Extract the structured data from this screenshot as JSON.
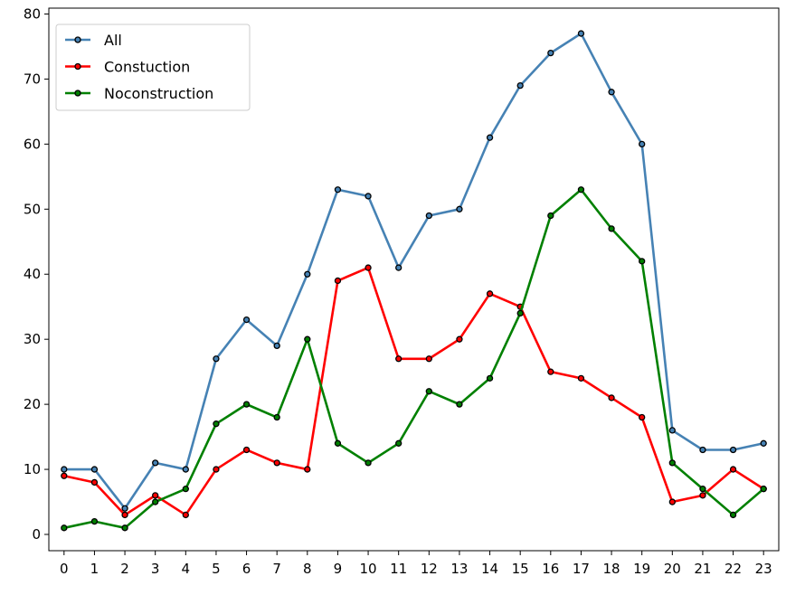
{
  "chart_data": {
    "type": "line",
    "title": "",
    "xlabel": "",
    "ylabel": "",
    "x": [
      0,
      1,
      2,
      3,
      4,
      5,
      6,
      7,
      8,
      9,
      10,
      11,
      12,
      13,
      14,
      15,
      16,
      17,
      18,
      19,
      20,
      21,
      22,
      23
    ],
    "xlim": [
      -0.5,
      23.5
    ],
    "ylim": [
      -2.5,
      80.9
    ],
    "yticks": [
      0,
      10,
      20,
      30,
      40,
      50,
      60,
      70,
      80
    ],
    "grid": false,
    "legend": "top-left",
    "series": [
      {
        "name": "All",
        "color": "#4682B4",
        "values": [
          10,
          10,
          4,
          11,
          10,
          27,
          33,
          29,
          40,
          53,
          52,
          41,
          49,
          50,
          61,
          69,
          74,
          77,
          68,
          60,
          16,
          13,
          13,
          14
        ]
      },
      {
        "name": "Constuction",
        "color": "#FF0000",
        "values": [
          9,
          8,
          3,
          6,
          3,
          10,
          13,
          11,
          10,
          39,
          41,
          27,
          27,
          30,
          37,
          35,
          25,
          24,
          21,
          18,
          5,
          6,
          10,
          7
        ]
      },
      {
        "name": "Noconstruction",
        "color": "#008000",
        "values": [
          1,
          2,
          1,
          5,
          7,
          17,
          20,
          18,
          30,
          14,
          11,
          14,
          22,
          20,
          24,
          34,
          49,
          53,
          47,
          42,
          11,
          7,
          3,
          7
        ]
      }
    ]
  }
}
